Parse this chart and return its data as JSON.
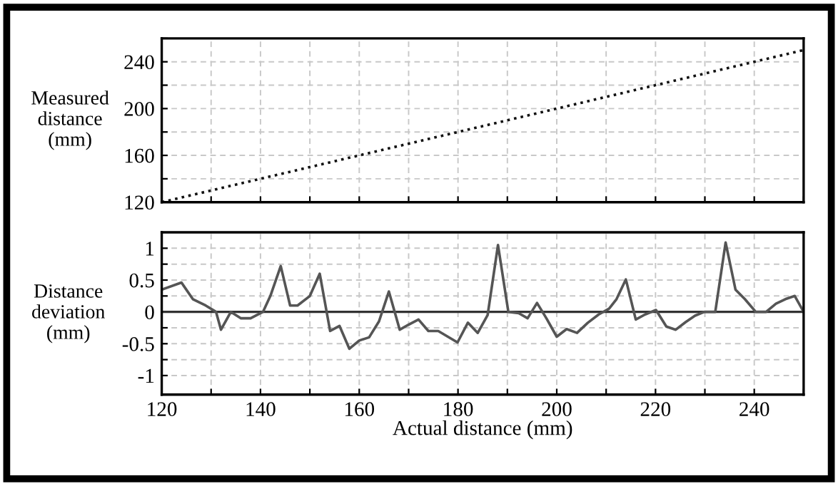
{
  "chart_data": [
    {
      "type": "line",
      "ylabel": "Measured\ndistance\n(mm)",
      "xlim": [
        120,
        250
      ],
      "ylim": [
        120,
        260
      ],
      "xticks": [
        120,
        {
          "value": 130,
          "label": null
        },
        140,
        {
          "value": 150,
          "label": null
        },
        160,
        {
          "value": 170,
          "label": null
        },
        180,
        {
          "value": 190,
          "label": null
        },
        200,
        {
          "value": 210,
          "label": null
        },
        220,
        {
          "value": 230,
          "label": null
        },
        240,
        {
          "value": 250,
          "label": null
        }
      ],
      "yticks": [
        120,
        {
          "value": 140,
          "label": null
        },
        160,
        {
          "value": 180,
          "label": null
        },
        200,
        {
          "value": 220,
          "label": null
        },
        240,
        {
          "value": 260,
          "label": null
        }
      ],
      "tick_labels": "y",
      "grid": true,
      "legend": false,
      "marker": "none",
      "line_style": "dotted",
      "series": [
        {
          "color": "#111111",
          "x": [
            120,
            250
          ],
          "values": [
            120,
            250
          ]
        }
      ]
    },
    {
      "type": "line",
      "ylabel": "Distance\ndeviation\n(mm)",
      "xlabel": "Actual distance (mm)",
      "xlim": [
        120,
        250
      ],
      "ylim": [
        -1.3,
        1.25
      ],
      "xticks": [
        120,
        {
          "value": 130,
          "label": null
        },
        140,
        {
          "value": 150,
          "label": null
        },
        160,
        {
          "value": 170,
          "label": null
        },
        180,
        {
          "value": 190,
          "label": null
        },
        200,
        {
          "value": 210,
          "label": null
        },
        220,
        {
          "value": 230,
          "label": null
        },
        240,
        {
          "value": 250,
          "label": null
        }
      ],
      "yticks": [
        {
          "value": -1,
          "label": "-1"
        },
        {
          "value": -0.75,
          "label": null
        },
        {
          "value": -0.5,
          "label": "-0.5"
        },
        {
          "value": -0.25,
          "label": null
        },
        0,
        {
          "value": 0.25,
          "label": null
        },
        0.5,
        {
          "value": 0.75,
          "label": null
        },
        1
      ],
      "grid": true,
      "legend": false,
      "marker": "none",
      "line_style": "solid",
      "ref_lines": [
        {
          "axis": "y",
          "value": 0,
          "color": "#333333",
          "line_style": "solid"
        }
      ],
      "series": [
        {
          "color": "#555555",
          "x": [
            120,
            124,
            126.3,
            128.9,
            131,
            132,
            134,
            136,
            138,
            140.5,
            142,
            144.1,
            146,
            147.5,
            150,
            152,
            154.1,
            156,
            158,
            160,
            162,
            164,
            166,
            168.2,
            170,
            172,
            174,
            176,
            179.9,
            182,
            184,
            186,
            188.1,
            190.2,
            192.3,
            194.1,
            196,
            197.9,
            200,
            202,
            204.1,
            206.3,
            208.5,
            210.6,
            212.1,
            214,
            216,
            217.9,
            220.1,
            222.2,
            224.1,
            226.1,
            228,
            229.9,
            232.1,
            234.2,
            236.2,
            238.1,
            240.3,
            242.4,
            244.4,
            246.3,
            248.2,
            250
          ],
          "values": [
            0.35,
            0.46,
            0.2,
            0.1,
            0,
            -0.28,
            0,
            -0.1,
            -0.1,
            0,
            0.25,
            0.72,
            0.1,
            0.1,
            0.25,
            0.6,
            -0.3,
            -0.22,
            -0.58,
            -0.45,
            -0.4,
            -0.15,
            0.32,
            -0.28,
            -0.2,
            -0.12,
            -0.3,
            -0.3,
            -0.48,
            -0.17,
            -0.33,
            -0.05,
            1.05,
            0,
            -0.02,
            -0.1,
            0.14,
            -0.1,
            -0.39,
            -0.27,
            -0.33,
            -0.17,
            -0.04,
            0.05,
            0.2,
            0.51,
            -0.12,
            -0.04,
            0.03,
            -0.23,
            -0.28,
            -0.16,
            -0.06,
            0,
            0,
            1.09,
            0.35,
            0.2,
            0,
            0,
            0.13,
            0.2,
            0.25,
            0
          ]
        }
      ]
    }
  ]
}
